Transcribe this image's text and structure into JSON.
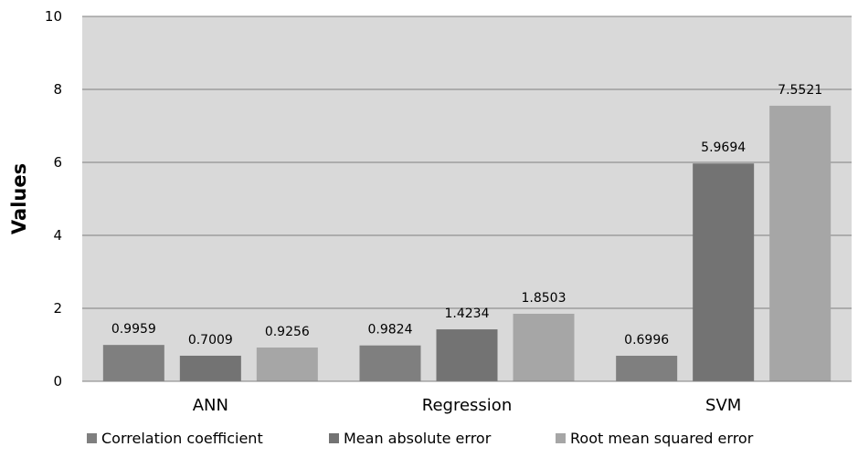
{
  "chart_data": {
    "type": "bar",
    "categories": [
      "ANN",
      "Regression",
      "SVM"
    ],
    "series": [
      {
        "name": "Correlation coefficient",
        "values": [
          0.9959,
          0.9824,
          0.6996
        ],
        "color": "#7f7f7f",
        "labels": [
          "0.9959",
          "0.9824",
          "0.6996"
        ]
      },
      {
        "name": "Mean absolute error",
        "values": [
          0.7009,
          1.4234,
          5.9694
        ],
        "color": "#737373",
        "labels": [
          "0.7009",
          "1.4234",
          "5.9694"
        ]
      },
      {
        "name": "Root mean squared error",
        "values": [
          0.9256,
          1.8503,
          7.5521
        ],
        "color": "#a6a6a6",
        "labels": [
          "0.9256",
          "1.8503",
          "7.5521"
        ]
      }
    ],
    "title": "",
    "xlabel": "",
    "ylabel": "Values",
    "ylim": [
      0,
      10
    ],
    "yticks": [
      0,
      2,
      4,
      6,
      8,
      10
    ],
    "ytick_labels": [
      "0",
      "2",
      "4",
      "6",
      "8",
      "10"
    ],
    "grid": true,
    "plot_background": "#d9d9d9",
    "gridline_color": "#808080",
    "legend_position": "bottom"
  }
}
